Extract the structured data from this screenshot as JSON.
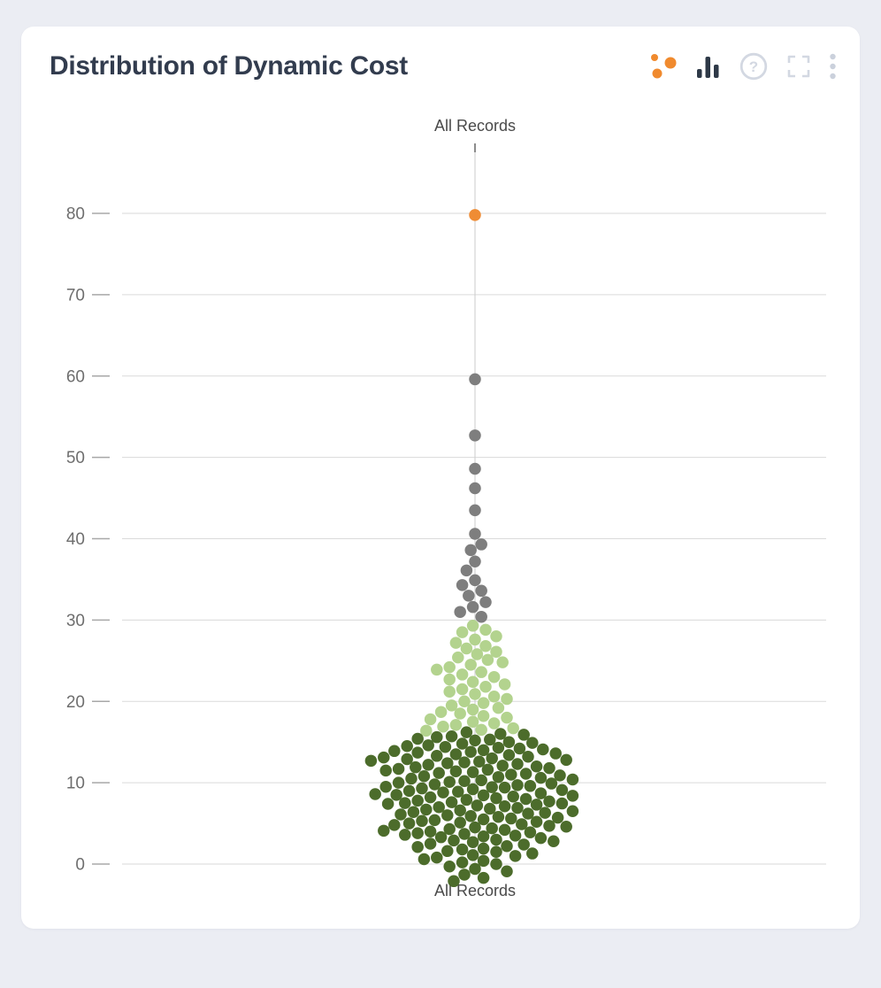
{
  "card": {
    "title": "Distribution of Dynamic Cost"
  },
  "toolbar": {
    "buttons": [
      {
        "name": "scatter-chart",
        "active": true
      },
      {
        "name": "bar-chart",
        "active": true
      },
      {
        "name": "help",
        "active": false
      },
      {
        "name": "fullscreen",
        "active": false
      },
      {
        "name": "menu",
        "active": false
      }
    ]
  },
  "chart_data": {
    "type": "scatter",
    "subtype": "beeswarm",
    "title": "Distribution of Dynamic Cost",
    "category_label_top": "All Records",
    "category_label_bottom": "All Records",
    "xlabel": "",
    "ylabel": "",
    "ylim": [
      -4,
      86
    ],
    "yticks": [
      0,
      10,
      20,
      30,
      40,
      50,
      60,
      70,
      80
    ],
    "grid": true,
    "legend": false,
    "series": [
      {
        "name": "high-outlier",
        "color": "#EF8C34",
        "values": [
          79.8
        ]
      },
      {
        "name": "upper-tail",
        "color": "#7E7E7E",
        "values": [
          59.6,
          52.7,
          48.6,
          46.2,
          43.5,
          40.6,
          39.3,
          38.6,
          37.2,
          36.1,
          34.9,
          34.3,
          33.6,
          33.0,
          32.2,
          31.6,
          31.0,
          30.4
        ]
      },
      {
        "name": "mid-band",
        "color": "#B3D38E",
        "values": [
          29.3,
          28.8,
          28.5,
          28.0,
          27.6,
          27.2,
          26.8,
          26.5,
          26.1,
          25.8,
          25.4,
          25.1,
          24.8,
          24.5,
          24.2,
          23.9,
          23.6,
          23.3,
          23.0,
          22.7,
          22.4,
          22.1,
          21.8,
          21.5,
          21.2,
          20.9,
          20.6,
          20.3,
          20.0,
          19.8,
          19.5,
          19.2,
          19.0,
          18.7,
          18.5,
          18.2,
          18.0,
          17.8,
          17.5,
          17.3,
          17.1,
          16.9,
          16.7,
          16.5,
          16.4
        ]
      },
      {
        "name": "low-band",
        "color": "#4C6C2B",
        "values": [
          16.2,
          16.0,
          15.9,
          15.7,
          15.6,
          15.4,
          15.3,
          15.2,
          15.0,
          14.9,
          14.8,
          14.6,
          14.5,
          14.4,
          14.3,
          14.2,
          14.1,
          14.0,
          13.9,
          13.8,
          13.7,
          13.6,
          13.5,
          13.4,
          13.3,
          13.2,
          13.1,
          13.0,
          12.9,
          12.8,
          12.7,
          12.6,
          12.5,
          12.4,
          12.3,
          12.2,
          12.1,
          12.0,
          11.9,
          11.8,
          11.7,
          11.6,
          11.5,
          11.4,
          11.3,
          11.2,
          11.1,
          11.0,
          10.9,
          10.8,
          10.7,
          10.6,
          10.5,
          10.4,
          10.3,
          10.2,
          10.1,
          10.0,
          9.9,
          9.8,
          9.7,
          9.6,
          9.5,
          9.45,
          9.4,
          9.3,
          9.2,
          9.1,
          9.0,
          8.9,
          8.8,
          8.7,
          8.6,
          8.5,
          8.45,
          8.4,
          8.3,
          8.2,
          8.1,
          8.0,
          7.9,
          7.8,
          7.7,
          7.6,
          7.5,
          7.45,
          7.4,
          7.3,
          7.2,
          7.1,
          7.0,
          6.9,
          6.8,
          6.7,
          6.6,
          6.5,
          6.4,
          6.3,
          6.2,
          6.1,
          6.0,
          5.9,
          5.8,
          5.7,
          5.6,
          5.5,
          5.4,
          5.3,
          5.2,
          5.1,
          5.0,
          4.9,
          4.8,
          4.7,
          4.6,
          4.5,
          4.4,
          4.3,
          4.2,
          4.1,
          4.0,
          3.9,
          3.8,
          3.7,
          3.6,
          3.5,
          3.4,
          3.3,
          3.2,
          3.0,
          2.9,
          2.8,
          2.7,
          2.5,
          2.4,
          2.2,
          2.1,
          1.9,
          1.8,
          1.6,
          1.5,
          1.3,
          1.1,
          1.0,
          0.8,
          0.6,
          0.4,
          0.2,
          0.0,
          -0.3,
          -0.6,
          -0.9,
          -1.3,
          -1.7,
          -2.1
        ]
      }
    ]
  }
}
